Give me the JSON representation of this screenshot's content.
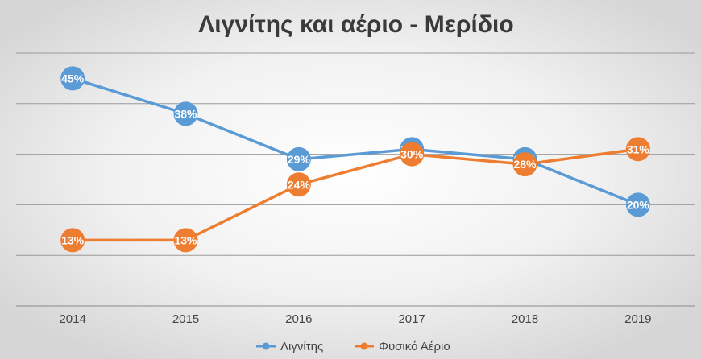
{
  "chart_data": {
    "type": "line",
    "title": "Λιγνίτης και αέριο - Μερίδιο",
    "categories": [
      "2014",
      "2015",
      "2016",
      "2017",
      "2018",
      "2019"
    ],
    "series": [
      {
        "name": "Λιγνίτης",
        "values": [
          45,
          38,
          29,
          31,
          29,
          20
        ],
        "labels": [
          "45%",
          "38%",
          "29%",
          "31%",
          "29%",
          "20%"
        ],
        "color": "#5b9bd5"
      },
      {
        "name": "Φυσικό Αέριο",
        "values": [
          13,
          13,
          24,
          30,
          28,
          31
        ],
        "labels": [
          "13%",
          "13%",
          "24%",
          "30%",
          "28%",
          "31%"
        ],
        "color": "#ed7d31"
      }
    ],
    "ylim": [
      0,
      50
    ],
    "y_gridline_values": [
      0,
      10,
      20,
      30,
      40,
      50
    ],
    "y_tick_labels_shown": false,
    "grid": true,
    "legend_position": "bottom",
    "background": "radial-gradient-gray"
  }
}
